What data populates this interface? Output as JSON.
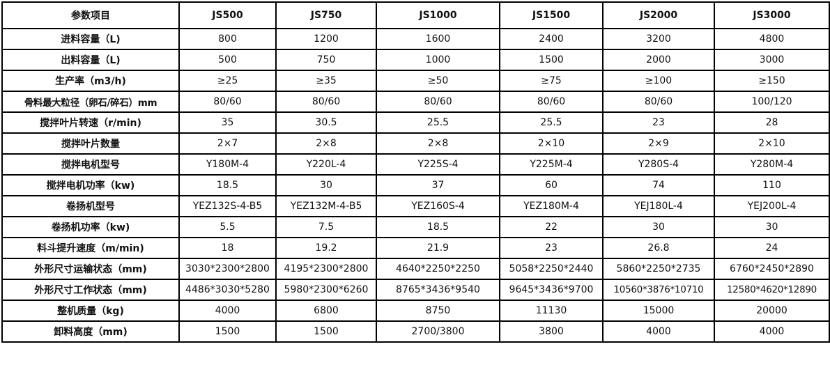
{
  "table": {
    "headers": [
      "参数项目",
      "JS500",
      "JS750",
      "JS1000",
      "JS1500",
      "JS2000",
      "JS3000"
    ],
    "rows": [
      [
        "进料容量（L)",
        "800",
        "1200",
        "1600",
        "2400",
        "3200",
        "4800"
      ],
      [
        "出料容量（L)",
        "500",
        "750",
        "1000",
        "1500",
        "2000",
        "3000"
      ],
      [
        "生产率（m3/h)",
        "≥25",
        "≥35",
        "≥50",
        "≥75",
        "≥100",
        "≥150"
      ],
      [
        "骨料最大粒径（卵石/碎石）mm",
        "80/60",
        "80/60",
        "80/60",
        "80/60",
        "80/60",
        "100/120"
      ],
      [
        "搅拌叶片转速（r/min)",
        "35",
        "30.5",
        "25.5",
        "25.5",
        "23",
        "28"
      ],
      [
        "搅拌叶片数量",
        "2×7",
        "2×8",
        "2×8",
        "2×10",
        "2×9",
        "2×10"
      ],
      [
        "搅拌电机型号",
        "Y180M-4",
        "Y220L-4",
        "Y225S-4",
        "Y225M-4",
        "Y280S-4",
        "Y280M-4"
      ],
      [
        "搅拌电机功率（kw)",
        "18.5",
        "30",
        "37",
        "60",
        "74",
        "110"
      ],
      [
        "卷扬机型号",
        "YEZ132S-4-B5",
        "YEZ132M-4-B5",
        "YEZ160S-4",
        "YEZ180M-4",
        "YEJ180L-4",
        "YEJ200L-4"
      ],
      [
        "卷扬机功率（kw)",
        "5.5",
        "7.5",
        "18.5",
        "22",
        "30",
        "30"
      ],
      [
        "料斗提升速度（m/min)",
        "18",
        "19.2",
        "21.9",
        "23",
        "26.8",
        "24"
      ],
      [
        "外形尺寸运输状态（mm)",
        "3030*2300*2800",
        "4195*2300*2800",
        "4640*2250*2250",
        "5058*2250*2440",
        "5860*2250*2735",
        "6760*2450*2890"
      ],
      [
        "外形尺寸工作状态（mm)",
        "4486*3030*5280",
        "5980*2300*6260",
        "8765*3436*9540",
        "9645*3436*9700",
        "10560*3876*10710",
        "12580*4620*12890"
      ],
      [
        "整机质量（kg)",
        "4000",
        "6800",
        "8750",
        "11130",
        "15000",
        "20000"
      ],
      [
        "卸料高度（mm)",
        "1500",
        "1500",
        "2700/3800",
        "3800",
        "4000",
        "4000"
      ]
    ]
  }
}
